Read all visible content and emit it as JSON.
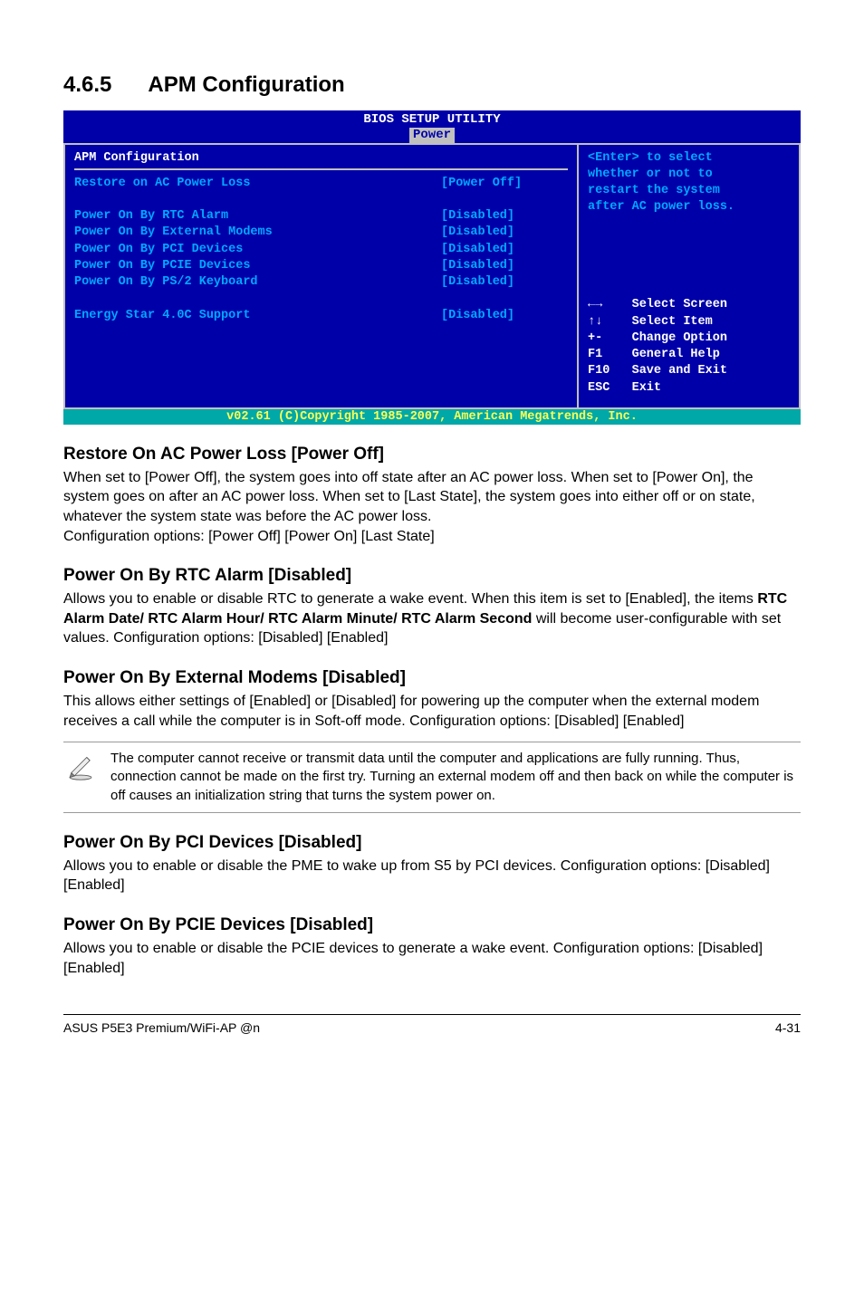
{
  "title": {
    "number": "4.6.5",
    "text": "APM Configuration"
  },
  "bios": {
    "banner_line1": "BIOS SETUP UTILITY",
    "banner_tab": "Power",
    "panel_heading": "APM Configuration",
    "rows": [
      {
        "label": "Restore on AC Power Loss",
        "value": "[Power Off]"
      },
      {
        "label": "",
        "value": ""
      },
      {
        "label": "Power On By RTC Alarm",
        "value": "[Disabled]"
      },
      {
        "label": "Power On By External Modems",
        "value": "[Disabled]"
      },
      {
        "label": "Power On By PCI Devices",
        "value": "[Disabled]"
      },
      {
        "label": "Power On By PCIE Devices",
        "value": "[Disabled]"
      },
      {
        "label": "Power On By PS/2 Keyboard",
        "value": "[Disabled]"
      },
      {
        "label": "",
        "value": ""
      },
      {
        "label": "Energy Star 4.0C Support",
        "value": "[Disabled]"
      }
    ],
    "help_top_lines": [
      "<Enter> to select",
      "whether or not to",
      "restart the system",
      "after AC power loss."
    ],
    "help_bottom_lines": [
      "←→    Select Screen",
      "↑↓    Select Item",
      "+-    Change Option",
      "F1    General Help",
      "F10   Save and Exit",
      "ESC   Exit"
    ],
    "footer": "v02.61 (C)Copyright 1985-2007, American Megatrends, Inc."
  },
  "sections": [
    {
      "heading": "Restore On AC Power Loss [Power Off]",
      "paragraphs": [
        "When set to [Power Off], the system goes into off state after an AC power loss. When set to [Power On], the system goes on after an AC power loss. When set to [Last State], the system goes into either off or on state, whatever the system state was before the AC power loss.",
        "Configuration options: [Power Off] [Power On] [Last State]"
      ]
    },
    {
      "heading": "Power On By RTC Alarm [Disabled]",
      "paragraphs_html": [
        "Allows you to enable or disable RTC to generate a wake event. When this item is set to [Enabled], the items <b>RTC Alarm Date/ RTC Alarm Hour/ RTC Alarm Minute/ RTC Alarm Second</b> will become user-configurable with set values. Configuration options: [Disabled] [Enabled]"
      ]
    },
    {
      "heading": "Power On By External Modems [Disabled]",
      "paragraphs": [
        "This allows either settings of [Enabled] or [Disabled] for powering up the computer when the external modem receives a call while the computer is in Soft-off mode. Configuration options: [Disabled] [Enabled]"
      ],
      "note": "The computer cannot receive or transmit data until the computer and applications are fully running. Thus, connection cannot be made on the first try. Turning an external modem off and then back on while the computer is off causes an initialization string that turns the system power on."
    },
    {
      "heading": "Power On By PCI Devices [Disabled]",
      "paragraphs": [
        "Allows you to enable or disable the PME to wake up from S5 by PCI devices. Configuration options: [Disabled] [Enabled]"
      ]
    },
    {
      "heading": "Power On By PCIE Devices [Disabled]",
      "paragraphs": [
        "Allows you to enable or disable the PCIE devices to generate a wake event. Configuration options: [Disabled] [Enabled]"
      ]
    }
  ],
  "footer": {
    "left": "ASUS P5E3 Premium/WiFi-AP @n",
    "right": "4-31"
  }
}
